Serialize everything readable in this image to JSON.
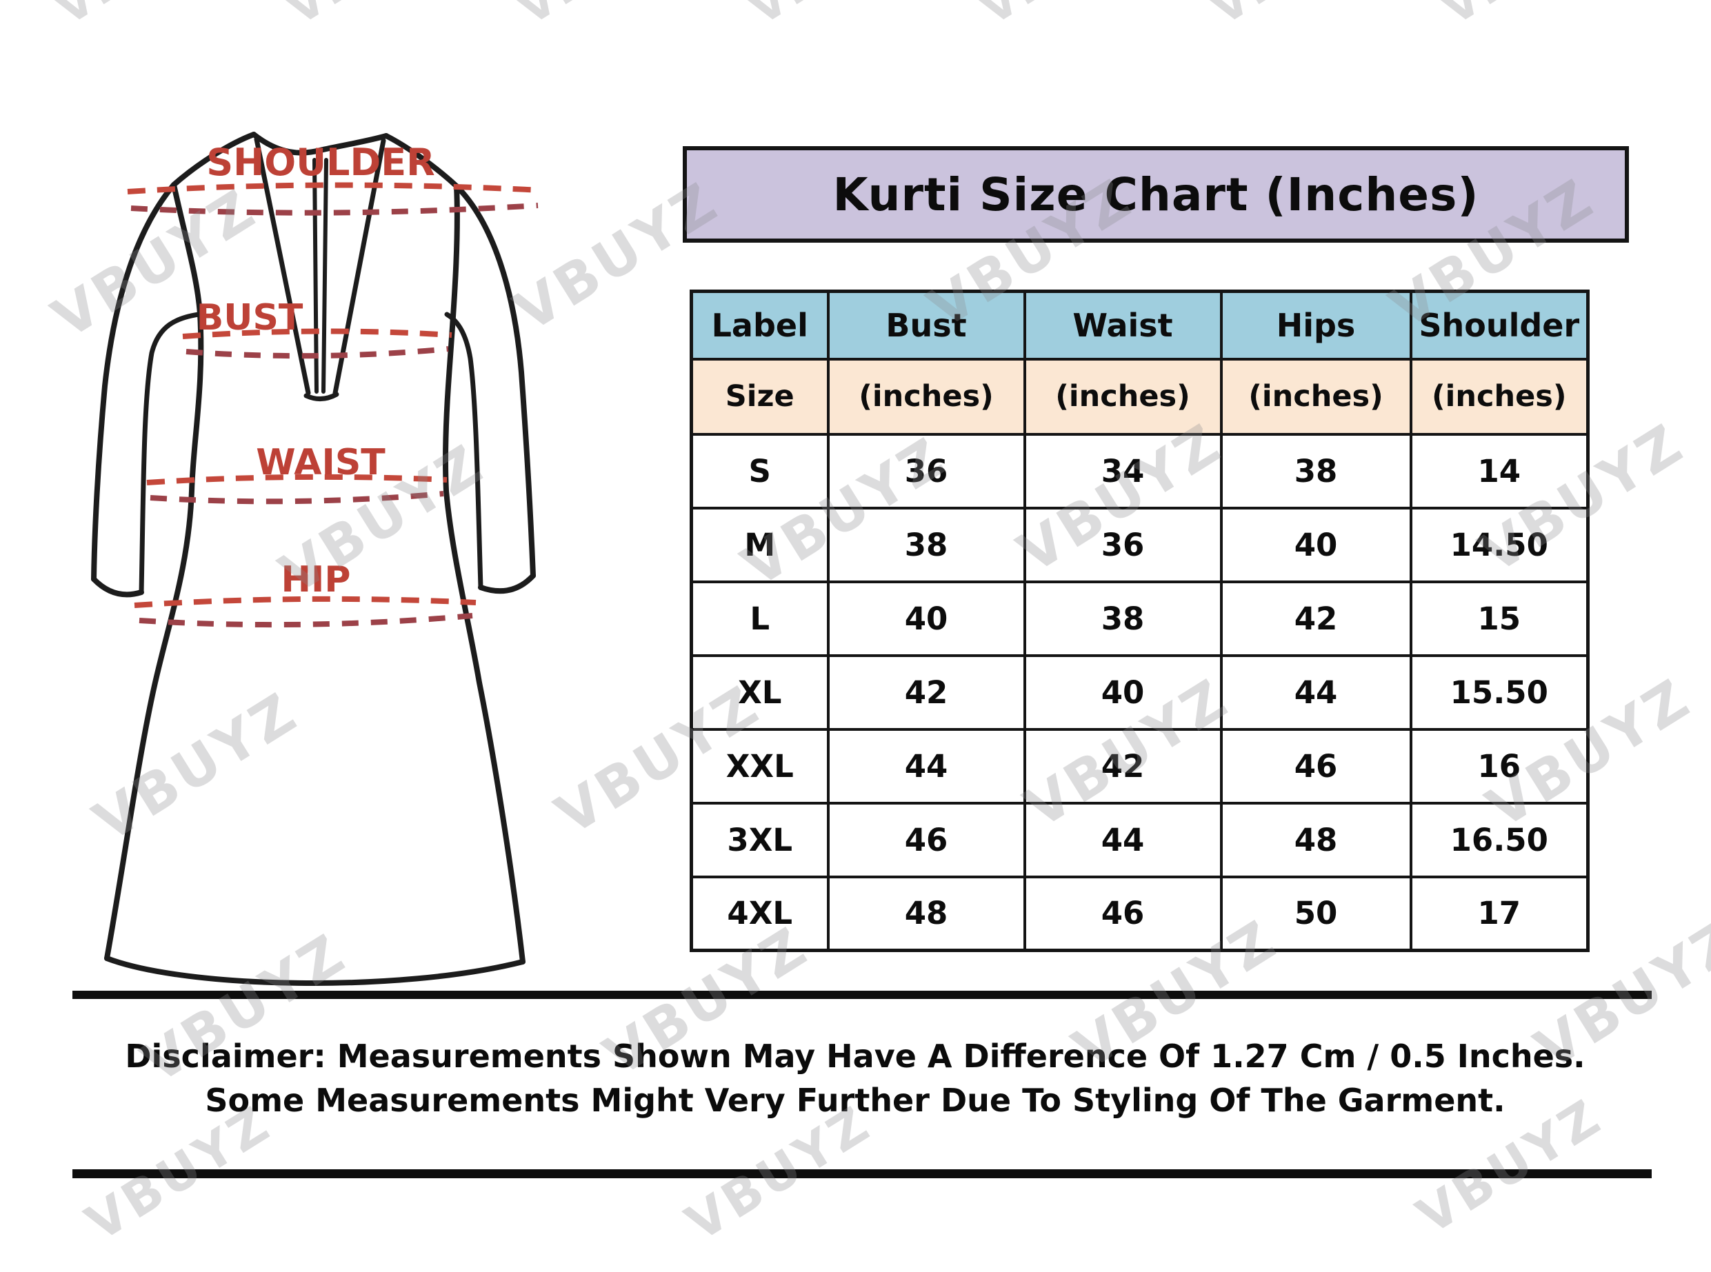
{
  "watermark": {
    "text": "VBUYZ"
  },
  "title": "Kurti Size Chart (Inches)",
  "diagram": {
    "labels": {
      "shoulder": "SHOULDER",
      "bust": "BUST",
      "waist": "WAIST",
      "hip": "HIP"
    },
    "label_color": "#bd4136",
    "dash_color_light": "#c4473a",
    "dash_color_dark": "#9c4148",
    "outline_color": "#1c1c1c"
  },
  "table": {
    "header": [
      "Label",
      "Bust",
      "Waist",
      "Hips",
      "Shoulder"
    ],
    "subheader": [
      "Size",
      "(inches)",
      "(inches)",
      "(inches)",
      "(inches)"
    ],
    "rows": [
      {
        "label": "S",
        "bust": "36",
        "waist": "34",
        "hips": "38",
        "shoulder": "14"
      },
      {
        "label": "M",
        "bust": "38",
        "waist": "36",
        "hips": "40",
        "shoulder": "14.50"
      },
      {
        "label": "L",
        "bust": "40",
        "waist": "38",
        "hips": "42",
        "shoulder": "15"
      },
      {
        "label": "XL",
        "bust": "42",
        "waist": "40",
        "hips": "44",
        "shoulder": "15.50"
      },
      {
        "label": "XXL",
        "bust": "44",
        "waist": "42",
        "hips": "46",
        "shoulder": "16"
      },
      {
        "label": "3XL",
        "bust": "46",
        "waist": "44",
        "hips": "48",
        "shoulder": "16.50"
      },
      {
        "label": "4XL",
        "bust": "48",
        "waist": "46",
        "hips": "50",
        "shoulder": "17"
      }
    ],
    "colors": {
      "title_bg": "#cbc3dd",
      "header_bg": "#9fcede",
      "subheader_bg": "#fbe7d3"
    }
  },
  "disclaimer": {
    "line1": "Disclaimer: Measurements Shown May Have A Difference Of 1.27 Cm / 0.5 Inches.",
    "line2": "Some Measurements Might Very Further Due To Styling Of The Garment."
  },
  "chart_data": {
    "type": "table",
    "title": "Kurti Size Chart (Inches)",
    "columns": [
      "Label Size",
      "Bust (inches)",
      "Waist (inches)",
      "Hips (inches)",
      "Shoulder (inches)"
    ],
    "rows": [
      [
        "S",
        36,
        34,
        38,
        14
      ],
      [
        "M",
        38,
        36,
        40,
        14.5
      ],
      [
        "L",
        40,
        38,
        42,
        15
      ],
      [
        "XL",
        42,
        40,
        44,
        15.5
      ],
      [
        "XXL",
        44,
        42,
        46,
        16
      ],
      [
        "3XL",
        46,
        44,
        48,
        16.5
      ],
      [
        "4XL",
        48,
        46,
        50,
        17
      ]
    ],
    "notes": [
      "Disclaimer: Measurements Shown May Have A Difference Of 1.27 Cm / 0.5 Inches.",
      "Some Measurements Might Very Further Due To Styling Of The Garment."
    ]
  }
}
